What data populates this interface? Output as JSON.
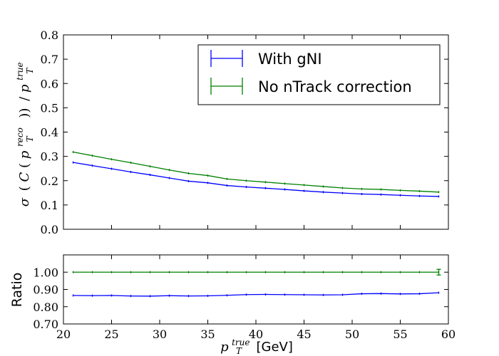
{
  "chart_data": [
    {
      "type": "line",
      "panel": "main",
      "ylim": [
        0.0,
        0.8
      ],
      "xlim": [
        20,
        60
      ],
      "yticks": [
        "0.0",
        "0.1",
        "0.2",
        "0.3",
        "0.4",
        "0.5",
        "0.6",
        "0.7",
        "0.8"
      ],
      "ylabel": {
        "sigma": "σ",
        "open": "(",
        "C": "C",
        "p": "p",
        "reco": "reco",
        "T": "T",
        "close": "))",
        "slash": "/",
        "true": "true"
      },
      "legend": {
        "placement": "top-right"
      },
      "x": [
        21,
        23,
        25,
        27,
        29,
        31,
        33,
        35,
        37,
        39,
        41,
        43,
        45,
        47,
        49,
        51,
        53,
        55,
        57,
        59
      ],
      "series": [
        {
          "name": "With gNI",
          "color": "#0000ff",
          "values": [
            0.275,
            0.262,
            0.249,
            0.236,
            0.224,
            0.211,
            0.198,
            0.191,
            0.18,
            0.174,
            0.169,
            0.164,
            0.158,
            0.153,
            0.149,
            0.145,
            0.143,
            0.14,
            0.137,
            0.135
          ]
        },
        {
          "name": "No nTrack correction",
          "color": "#008000",
          "values": [
            0.318,
            0.303,
            0.288,
            0.274,
            0.259,
            0.244,
            0.23,
            0.221,
            0.207,
            0.2,
            0.194,
            0.188,
            0.182,
            0.176,
            0.17,
            0.166,
            0.164,
            0.16,
            0.157,
            0.153
          ]
        }
      ]
    },
    {
      "type": "line",
      "panel": "ratio",
      "ylabel": "Ratio",
      "ylim": [
        0.7,
        1.1
      ],
      "xlim": [
        20,
        60
      ],
      "yticks": [
        "0.70",
        "0.80",
        "0.90",
        "1.00"
      ],
      "xticks": [
        "20",
        "25",
        "30",
        "35",
        "40",
        "45",
        "50",
        "55",
        "60"
      ],
      "xlabel": {
        "p": "p",
        "true": "true",
        "T": "T",
        "unit": " [GeV]"
      },
      "x": [
        21,
        23,
        25,
        27,
        29,
        31,
        33,
        35,
        37,
        39,
        41,
        43,
        45,
        47,
        49,
        51,
        53,
        55,
        57,
        59
      ],
      "series": [
        {
          "name": "With gNI",
          "color": "#0000ff",
          "values": [
            0.865,
            0.864,
            0.865,
            0.862,
            0.861,
            0.864,
            0.862,
            0.863,
            0.866,
            0.87,
            0.871,
            0.87,
            0.869,
            0.868,
            0.869,
            0.875,
            0.876,
            0.874,
            0.875,
            0.881
          ]
        },
        {
          "name": "No nTrack correction",
          "color": "#008000",
          "values": [
            1.0,
            1.0,
            1.0,
            1.0,
            1.0,
            1.0,
            1.0,
            1.0,
            1.0,
            1.0,
            1.0,
            1.0,
            1.0,
            1.0,
            1.0,
            1.0,
            1.0,
            1.0,
            1.0,
            1.0
          ]
        }
      ]
    }
  ]
}
